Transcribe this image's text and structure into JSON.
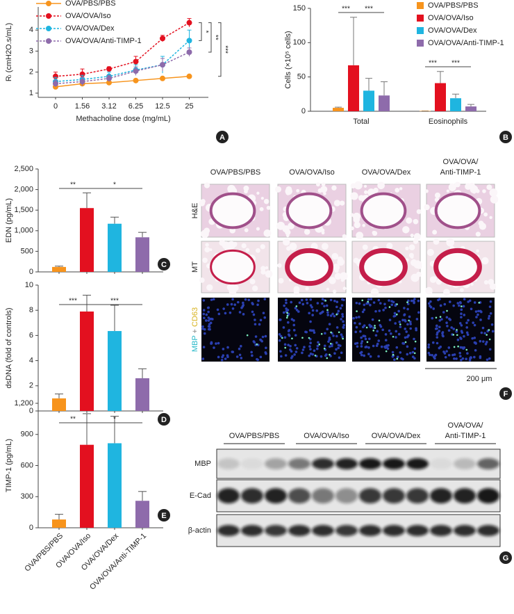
{
  "chart_data": [
    {
      "type": "line",
      "panel": "A",
      "x_label": "Methacholine dose (mg/mL)",
      "y_label": "Rₗ (cmH2O.s/mL)",
      "categories": [
        "0",
        "1.56",
        "3.12",
        "6.25",
        "12.5",
        "25"
      ],
      "ylim": [
        0.8,
        5.1
      ],
      "yticks": [
        1,
        2,
        3,
        4
      ],
      "series": [
        {
          "name": "OVA/PBS/PBS",
          "color": "#f7941d",
          "line_style": "solid",
          "values": [
            1.3,
            1.45,
            1.5,
            1.6,
            1.7,
            1.8
          ],
          "errors": [
            0.05,
            0.05,
            0.05,
            0.05,
            0.05,
            0.05
          ]
        },
        {
          "name": "OVA/OVA/Iso",
          "color": "#e3101f",
          "line_style": "dashed",
          "values": [
            1.8,
            1.9,
            2.15,
            2.5,
            3.6,
            4.35
          ],
          "errors": [
            0.2,
            0.25,
            0.1,
            0.25,
            0.15,
            0.2
          ]
        },
        {
          "name": "OVA/OVA/Dex",
          "color": "#1fb5e0",
          "line_style": "dashed",
          "values": [
            1.55,
            1.65,
            1.8,
            2.1,
            2.35,
            3.5
          ],
          "errors": [
            0.2,
            0.2,
            0.2,
            0.25,
            0.4,
            0.5
          ]
        },
        {
          "name": "OVA/OVA/Anti-TIMP-1",
          "color": "#8e6bab",
          "line_style": "dashed",
          "values": [
            1.45,
            1.55,
            1.7,
            2.05,
            2.35,
            2.95
          ],
          "errors": [
            0.15,
            0.2,
            0.15,
            0.2,
            0.3,
            0.2
          ]
        }
      ],
      "significance": [
        "*",
        "**",
        "***"
      ]
    },
    {
      "type": "grouped_bar",
      "panel": "B",
      "y_label": "Cells (×10⁵ cells)",
      "categories": [
        "Total",
        "Eosinophils"
      ],
      "ylim": [
        0,
        150
      ],
      "yticks": [
        0,
        50,
        100,
        150
      ],
      "series": [
        {
          "name": "OVA/PBS/PBS",
          "color": "#f7941d",
          "values": [
            5,
            0.5
          ],
          "errors": [
            1,
            0
          ]
        },
        {
          "name": "OVA/OVA/Iso",
          "color": "#e3101f",
          "values": [
            67,
            41
          ],
          "errors": [
            70,
            17
          ]
        },
        {
          "name": "OVA/OVA/Dex",
          "color": "#1fb5e0",
          "values": [
            30,
            19
          ],
          "errors": [
            18,
            6
          ]
        },
        {
          "name": "OVA/OVA/Anti-TIMP-1",
          "color": "#8e6bab",
          "values": [
            23,
            7
          ],
          "errors": [
            20,
            3
          ]
        }
      ],
      "significance": [
        "***",
        "***",
        "***",
        "***"
      ]
    },
    {
      "type": "bar",
      "panel": "C",
      "y_label": "EDN (pg/mL)",
      "ylim": [
        0,
        2500
      ],
      "yticks": [
        0,
        500,
        {
          "value": 1000,
          "label": "1,000"
        },
        {
          "value": 1500,
          "label": "1,500"
        },
        {
          "value": 2000,
          "label": "2,000"
        },
        {
          "value": 2500,
          "label": "2,500"
        }
      ],
      "colors": [
        "#f7941d",
        "#e3101f",
        "#1fb5e0",
        "#8e6bab"
      ],
      "values": [
        120,
        1550,
        1170,
        840
      ],
      "errors": [
        20,
        370,
        160,
        120
      ],
      "significance": [
        "**",
        "*"
      ]
    },
    {
      "type": "bar",
      "panel": "D",
      "y_label": "dsDNA (fold of controls)",
      "ylim": [
        0,
        10
      ],
      "yticks": [
        0,
        2,
        4,
        6,
        8,
        10
      ],
      "colors": [
        "#f7941d",
        "#e3101f",
        "#1fb5e0",
        "#8e6bab"
      ],
      "values": [
        1,
        7.9,
        6.35,
        2.6
      ],
      "errors": [
        0.35,
        1.3,
        2.05,
        0.75
      ],
      "significance": [
        "***",
        "***"
      ]
    },
    {
      "type": "bar",
      "panel": "E",
      "y_label": "TIMP-1 (pg/mL)",
      "ylim": [
        0,
        1200
      ],
      "yticks": [
        0,
        300,
        600,
        900,
        {
          "value": 1200,
          "label": "1,200"
        }
      ],
      "categories": [
        "OVA/PBS/PBS",
        "OVA/OVA/Iso",
        "OVA/OVA/Dex",
        "OVA/OVA/Anti-TIMP-1"
      ],
      "colors": [
        "#f7941d",
        "#e3101f",
        "#1fb5e0",
        "#8e6bab"
      ],
      "values": [
        80,
        800,
        815,
        260
      ],
      "errors": [
        50,
        300,
        260,
        90
      ],
      "significance": [
        "**",
        "*"
      ]
    }
  ],
  "histology": {
    "panel": "F",
    "columns": [
      [
        "OVA/PBS/PBS"
      ],
      [
        "OVA/OVA/Iso"
      ],
      [
        "OVA/OVA/Dex"
      ],
      [
        "OVA/OVA/",
        "Anti-TIMP-1"
      ]
    ],
    "rows": [
      [
        "H&E"
      ],
      [
        "MT"
      ],
      [
        "MBP",
        "+",
        "CD63"
      ]
    ],
    "scale_bar": "200 μm"
  },
  "western_blot": {
    "panel": "G",
    "groups": [
      [
        "OVA/PBS/PBS"
      ],
      [
        "OVA/OVA/Iso"
      ],
      [
        "OVA/OVA/Dex"
      ],
      [
        "OVA/OVA/",
        "Anti-TIMP-1"
      ]
    ],
    "rows": [
      "MBP",
      "E-Cad",
      "β-actin"
    ]
  }
}
